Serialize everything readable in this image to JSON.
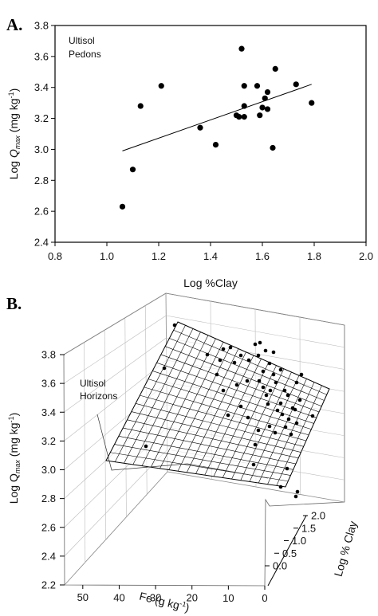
{
  "chart_data": [
    {
      "type": "scatter",
      "panel_label": "A.",
      "annotation": [
        "Ultisol",
        "Pedons"
      ],
      "xlabel": "Log %Clay",
      "ylabel_parts": [
        "Log ",
        "Q",
        "max",
        " (mg kg",
        "-1",
        ")"
      ],
      "xlim": [
        0.8,
        2.0
      ],
      "ylim": [
        2.4,
        3.8
      ],
      "xticks": [
        "0.8",
        "1.0",
        "1.2",
        "1.4",
        "1.6",
        "1.8",
        "2.0"
      ],
      "yticks": [
        "2.4",
        "2.6",
        "2.8",
        "3.0",
        "3.2",
        "3.4",
        "3.6",
        "3.8"
      ],
      "grid": false,
      "points": [
        {
          "x": 1.06,
          "y": 2.63
        },
        {
          "x": 1.1,
          "y": 2.87
        },
        {
          "x": 1.13,
          "y": 3.28
        },
        {
          "x": 1.21,
          "y": 3.41
        },
        {
          "x": 1.36,
          "y": 3.14
        },
        {
          "x": 1.42,
          "y": 3.03
        },
        {
          "x": 1.5,
          "y": 3.22
        },
        {
          "x": 1.51,
          "y": 3.21
        },
        {
          "x": 1.52,
          "y": 3.65
        },
        {
          "x": 1.53,
          "y": 3.21
        },
        {
          "x": 1.53,
          "y": 3.28
        },
        {
          "x": 1.53,
          "y": 3.41
        },
        {
          "x": 1.58,
          "y": 3.41
        },
        {
          "x": 1.59,
          "y": 3.22
        },
        {
          "x": 1.6,
          "y": 3.27
        },
        {
          "x": 1.61,
          "y": 3.33
        },
        {
          "x": 1.62,
          "y": 3.37
        },
        {
          "x": 1.62,
          "y": 3.26
        },
        {
          "x": 1.64,
          "y": 3.01
        },
        {
          "x": 1.65,
          "y": 3.52
        },
        {
          "x": 1.73,
          "y": 3.42
        },
        {
          "x": 1.79,
          "y": 3.3
        }
      ],
      "fit_line": {
        "x": [
          1.06,
          1.79
        ],
        "y": [
          2.99,
          3.42
        ]
      }
    },
    {
      "type": "scatter",
      "subtype": "3d-scatter-with-plane",
      "panel_label": "B.",
      "annotation": [
        "Ultisol",
        "Horizons"
      ],
      "xlabel_parts": [
        "Fe (g kg",
        "-1",
        ")"
      ],
      "ylabel": "Log % Clay",
      "zlabel_parts": [
        "Log Q",
        "max",
        " (mg kg",
        "-1",
        ")"
      ],
      "xlim": [
        0,
        55
      ],
      "ylim": [
        0,
        2.0
      ],
      "zlim": [
        2.2,
        3.8
      ],
      "xticks": [
        "0",
        "10",
        "20",
        "30",
        "40",
        "50"
      ],
      "yticks": [
        "0.0",
        "0.5",
        "1.0",
        "1.5",
        "2.0"
      ],
      "zticks": [
        "2.2",
        "2.4",
        "2.6",
        "2.8",
        "3.0",
        "3.2",
        "3.4",
        "3.6",
        "3.8"
      ],
      "grid": true
    }
  ]
}
